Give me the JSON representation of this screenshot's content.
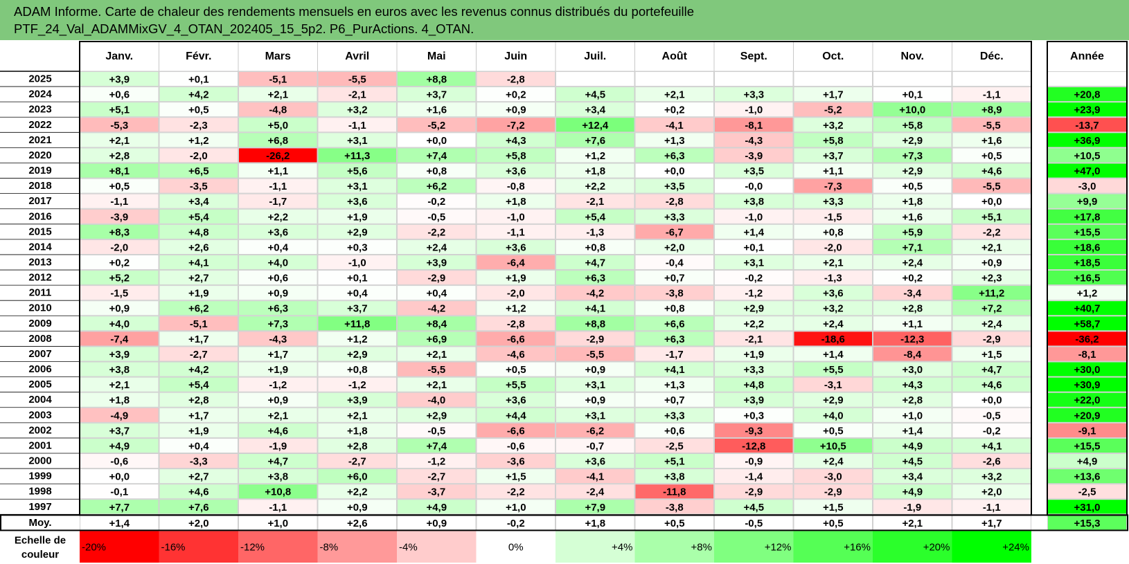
{
  "title_line1": "ADAM Informe. Carte de chaleur des rendements mensuels en euros avec les revenus connus distribués du portefeuille",
  "title_line2": "PTF_24_Val_ADAMMixGV_4_OTAN_202405_15_5p2. P6_PurActions. 4_OTAN.",
  "corner_label": "",
  "colors": {
    "title_bg": "#80c87c",
    "negative_max": "#ff0000",
    "positive_max": "#00ff00",
    "neutral": "#ffffff"
  },
  "chart_data": {
    "type": "heatmap",
    "columns": [
      "Janv.",
      "Févr.",
      "Mars",
      "Avril",
      "Mai",
      "Juin",
      "Juil.",
      "Août",
      "Sept.",
      "Oct.",
      "Nov.",
      "Déc."
    ],
    "year_header": "Année",
    "rows": [
      {
        "year": "2025",
        "months": [
          "+3,9",
          "+0,1",
          "-5,1",
          "-5,5",
          "+8,8",
          "-2,8",
          "",
          "",
          "",
          "",
          "",
          ""
        ],
        "annual": ""
      },
      {
        "year": "2024",
        "months": [
          "+0,6",
          "+4,2",
          "+2,1",
          "-2,1",
          "+3,7",
          "+0,2",
          "+4,5",
          "+2,1",
          "+3,3",
          "+1,7",
          "+0,1",
          "-1,1"
        ],
        "annual": "+20,8"
      },
      {
        "year": "2023",
        "months": [
          "+5,1",
          "+0,5",
          "-4,8",
          "+3,2",
          "+1,6",
          "+0,9",
          "+3,4",
          "+0,2",
          "-1,0",
          "-5,2",
          "+10,0",
          "+8,9"
        ],
        "annual": "+23,9"
      },
      {
        "year": "2022",
        "months": [
          "-5,3",
          "-2,3",
          "+5,0",
          "-1,1",
          "-5,2",
          "-7,2",
          "+12,4",
          "-4,1",
          "-8,1",
          "+3,2",
          "+5,8",
          "-5,5"
        ],
        "annual": "-13,7"
      },
      {
        "year": "2021",
        "months": [
          "+2,1",
          "+1,2",
          "+6,8",
          "+3,1",
          "+0,0",
          "+4,3",
          "+7,6",
          "+1,3",
          "-4,3",
          "+5,8",
          "+2,9",
          "+1,6"
        ],
        "annual": "+36,9"
      },
      {
        "year": "2020",
        "months": [
          "+2,8",
          "-2,0",
          "-26,2",
          "+11,3",
          "+7,4",
          "+5,8",
          "+1,2",
          "+6,3",
          "-3,9",
          "+3,7",
          "+7,3",
          "+0,5"
        ],
        "annual": "+10,5"
      },
      {
        "year": "2019",
        "months": [
          "+8,1",
          "+6,5",
          "+1,1",
          "+5,6",
          "+0,8",
          "+3,6",
          "+1,8",
          "+0,0",
          "+3,5",
          "+1,1",
          "+2,9",
          "+4,6"
        ],
        "annual": "+47,0"
      },
      {
        "year": "2018",
        "months": [
          "+0,5",
          "-3,5",
          "-1,1",
          "+3,1",
          "+6,2",
          "-0,8",
          "+2,2",
          "+3,5",
          "-0,0",
          "-7,3",
          "+0,5",
          "-5,5"
        ],
        "annual": "-3,0"
      },
      {
        "year": "2017",
        "months": [
          "-1,1",
          "+3,4",
          "-1,7",
          "+3,6",
          "-0,2",
          "+1,8",
          "-2,1",
          "-2,8",
          "+3,8",
          "+3,3",
          "+1,8",
          "+0,0"
        ],
        "annual": "+9,9"
      },
      {
        "year": "2016",
        "months": [
          "-3,9",
          "+5,4",
          "+2,2",
          "+1,9",
          "-0,5",
          "-1,0",
          "+5,4",
          "+3,3",
          "-1,0",
          "-1,5",
          "+1,6",
          "+5,1"
        ],
        "annual": "+17,8"
      },
      {
        "year": "2015",
        "months": [
          "+8,3",
          "+4,8",
          "+3,6",
          "+2,9",
          "-2,2",
          "-1,1",
          "-1,3",
          "-6,7",
          "+1,4",
          "+0,8",
          "+5,9",
          "-2,2"
        ],
        "annual": "+15,5"
      },
      {
        "year": "2014",
        "months": [
          "-2,0",
          "+2,6",
          "+0,4",
          "+0,3",
          "+2,4",
          "+3,6",
          "+0,8",
          "+2,0",
          "+0,1",
          "-2,0",
          "+7,1",
          "+2,1"
        ],
        "annual": "+18,6"
      },
      {
        "year": "2013",
        "months": [
          "+0,2",
          "+4,1",
          "+4,0",
          "-1,0",
          "+3,9",
          "-6,4",
          "+4,7",
          "-0,4",
          "+3,1",
          "+2,1",
          "+2,4",
          "+0,9"
        ],
        "annual": "+18,5"
      },
      {
        "year": "2012",
        "months": [
          "+5,2",
          "+2,7",
          "+0,6",
          "+0,1",
          "-2,9",
          "+1,9",
          "+6,3",
          "+0,7",
          "-0,2",
          "-1,3",
          "+0,2",
          "+2,3"
        ],
        "annual": "+16,5"
      },
      {
        "year": "2011",
        "months": [
          "-1,5",
          "+1,9",
          "+0,9",
          "+0,4",
          "+0,4",
          "-2,0",
          "-4,2",
          "-3,8",
          "-1,2",
          "+3,6",
          "-3,4",
          "+11,2"
        ],
        "annual": "+1,2"
      },
      {
        "year": "2010",
        "months": [
          "+0,9",
          "+6,2",
          "+6,3",
          "+3,7",
          "-4,2",
          "+1,2",
          "+4,1",
          "+0,8",
          "+2,9",
          "+3,2",
          "+2,8",
          "+7,2"
        ],
        "annual": "+40,7"
      },
      {
        "year": "2009",
        "months": [
          "+4,0",
          "-5,1",
          "+7,3",
          "+11,8",
          "+8,4",
          "-2,8",
          "+8,8",
          "+6,6",
          "+2,2",
          "+2,4",
          "+1,1",
          "+2,4"
        ],
        "annual": "+58,7"
      },
      {
        "year": "2008",
        "months": [
          "-7,4",
          "+1,7",
          "-4,3",
          "+1,2",
          "+6,9",
          "-6,6",
          "-2,9",
          "+6,3",
          "-2,1",
          "-18,6",
          "-12,3",
          "-2,9"
        ],
        "annual": "-36,2"
      },
      {
        "year": "2007",
        "months": [
          "+3,9",
          "-2,7",
          "+1,7",
          "+2,9",
          "+2,1",
          "-4,6",
          "-5,5",
          "-1,7",
          "+1,9",
          "+1,4",
          "-8,4",
          "+1,5"
        ],
        "annual": "-8,1"
      },
      {
        "year": "2006",
        "months": [
          "+3,8",
          "+4,2",
          "+1,9",
          "+0,8",
          "-5,5",
          "+0,5",
          "+0,9",
          "+4,1",
          "+3,3",
          "+5,5",
          "+3,0",
          "+4,7"
        ],
        "annual": "+30,0"
      },
      {
        "year": "2005",
        "months": [
          "+2,1",
          "+5,4",
          "-1,2",
          "-1,2",
          "+2,1",
          "+5,5",
          "+3,1",
          "+1,3",
          "+4,8",
          "-3,1",
          "+4,3",
          "+4,6"
        ],
        "annual": "+30,9"
      },
      {
        "year": "2004",
        "months": [
          "+1,8",
          "+2,8",
          "+0,9",
          "+3,9",
          "-4,0",
          "+3,6",
          "+0,9",
          "+0,7",
          "+3,9",
          "+2,9",
          "+2,8",
          "+0,0"
        ],
        "annual": "+22,0"
      },
      {
        "year": "2003",
        "months": [
          "-4,9",
          "+1,7",
          "+2,1",
          "+2,1",
          "+2,9",
          "+4,4",
          "+3,1",
          "+3,3",
          "+0,3",
          "+4,0",
          "+1,0",
          "-0,5"
        ],
        "annual": "+20,9"
      },
      {
        "year": "2002",
        "months": [
          "+3,7",
          "+1,9",
          "+4,6",
          "+1,8",
          "-0,5",
          "-6,6",
          "-6,2",
          "+0,6",
          "-9,3",
          "+0,5",
          "+1,4",
          "-0,2"
        ],
        "annual": "-9,1"
      },
      {
        "year": "2001",
        "months": [
          "+4,9",
          "+0,4",
          "-1,9",
          "+2,8",
          "+7,4",
          "-0,6",
          "-0,7",
          "-2,5",
          "-12,8",
          "+10,5",
          "+4,9",
          "+4,1"
        ],
        "annual": "+15,5"
      },
      {
        "year": "2000",
        "months": [
          "-0,6",
          "-3,3",
          "+4,7",
          "-2,7",
          "-1,2",
          "-3,6",
          "+3,6",
          "+5,1",
          "-0,9",
          "+2,4",
          "+4,5",
          "-2,6"
        ],
        "annual": "+4,9"
      },
      {
        "year": "1999",
        "months": [
          "+0,0",
          "+2,7",
          "+3,8",
          "+6,0",
          "-2,7",
          "+1,5",
          "-4,1",
          "+3,8",
          "-1,4",
          "-3,0",
          "+3,4",
          "+3,2"
        ],
        "annual": "+13,6"
      },
      {
        "year": "1998",
        "months": [
          "-0,1",
          "+4,6",
          "+10,8",
          "+2,2",
          "-3,7",
          "-2,2",
          "-2,4",
          "-11,8",
          "-2,9",
          "-2,9",
          "+4,9",
          "+2,0"
        ],
        "annual": "-2,5"
      },
      {
        "year": "1997",
        "months": [
          "+7,7",
          "+7,6",
          "-1,1",
          "+0,9",
          "+4,9",
          "+1,0",
          "+7,9",
          "-3,8",
          "+4,5",
          "+1,5",
          "-1,9",
          "-1,1"
        ],
        "annual": "+31,0"
      }
    ],
    "average": {
      "label": "Moy.",
      "months": [
        "+1,4",
        "+2,0",
        "+1,0",
        "+2,6",
        "+0,9",
        "-0,2",
        "+1,8",
        "+0,5",
        "-0,5",
        "+0,5",
        "+2,1",
        "+1,7"
      ],
      "annual": "+15,3"
    },
    "scale": {
      "label_line1": "Echelle de",
      "label_line2": "couleur",
      "steps": [
        "-20%",
        "-16%",
        "-12%",
        "-8%",
        "-4%",
        "0%",
        "+4%",
        "+8%",
        "+12%",
        "+16%",
        "+20%",
        "+24%"
      ],
      "trailing_faint": ""
    },
    "monthly_color_range": [
      -20,
      24
    ],
    "annual_color_range": [
      -20,
      24
    ]
  }
}
